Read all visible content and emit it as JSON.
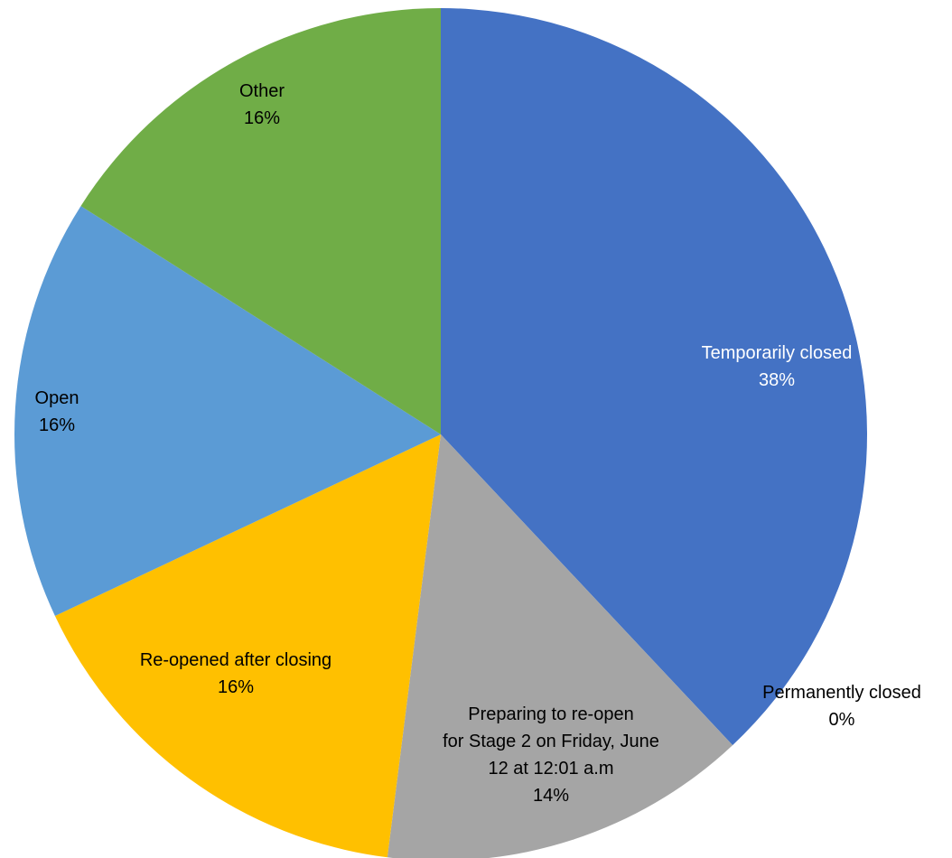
{
  "chart_data": {
    "type": "pie",
    "title": "",
    "legend": "none",
    "slices": [
      {
        "label": "Temporarily closed",
        "value": 38,
        "value_label": "38%",
        "color": "#4472C4"
      },
      {
        "label": "Permanently closed",
        "value": 0,
        "value_label": "0%",
        "color": "#ED7D31"
      },
      {
        "label": "Preparing to re-open for Stage 2 on Friday, June 12 at 12:01 a.m",
        "value": 14,
        "value_label": "14%",
        "color": "#A5A5A5"
      },
      {
        "label": "Re-opened after closing",
        "value": 16,
        "value_label": "16%",
        "color": "#FFC000"
      },
      {
        "label": "Open",
        "value": 16,
        "value_label": "16%",
        "color": "#5B9BD5"
      },
      {
        "label": "Other",
        "value": 16,
        "value_label": "16%",
        "color": "#70AD47"
      }
    ]
  }
}
